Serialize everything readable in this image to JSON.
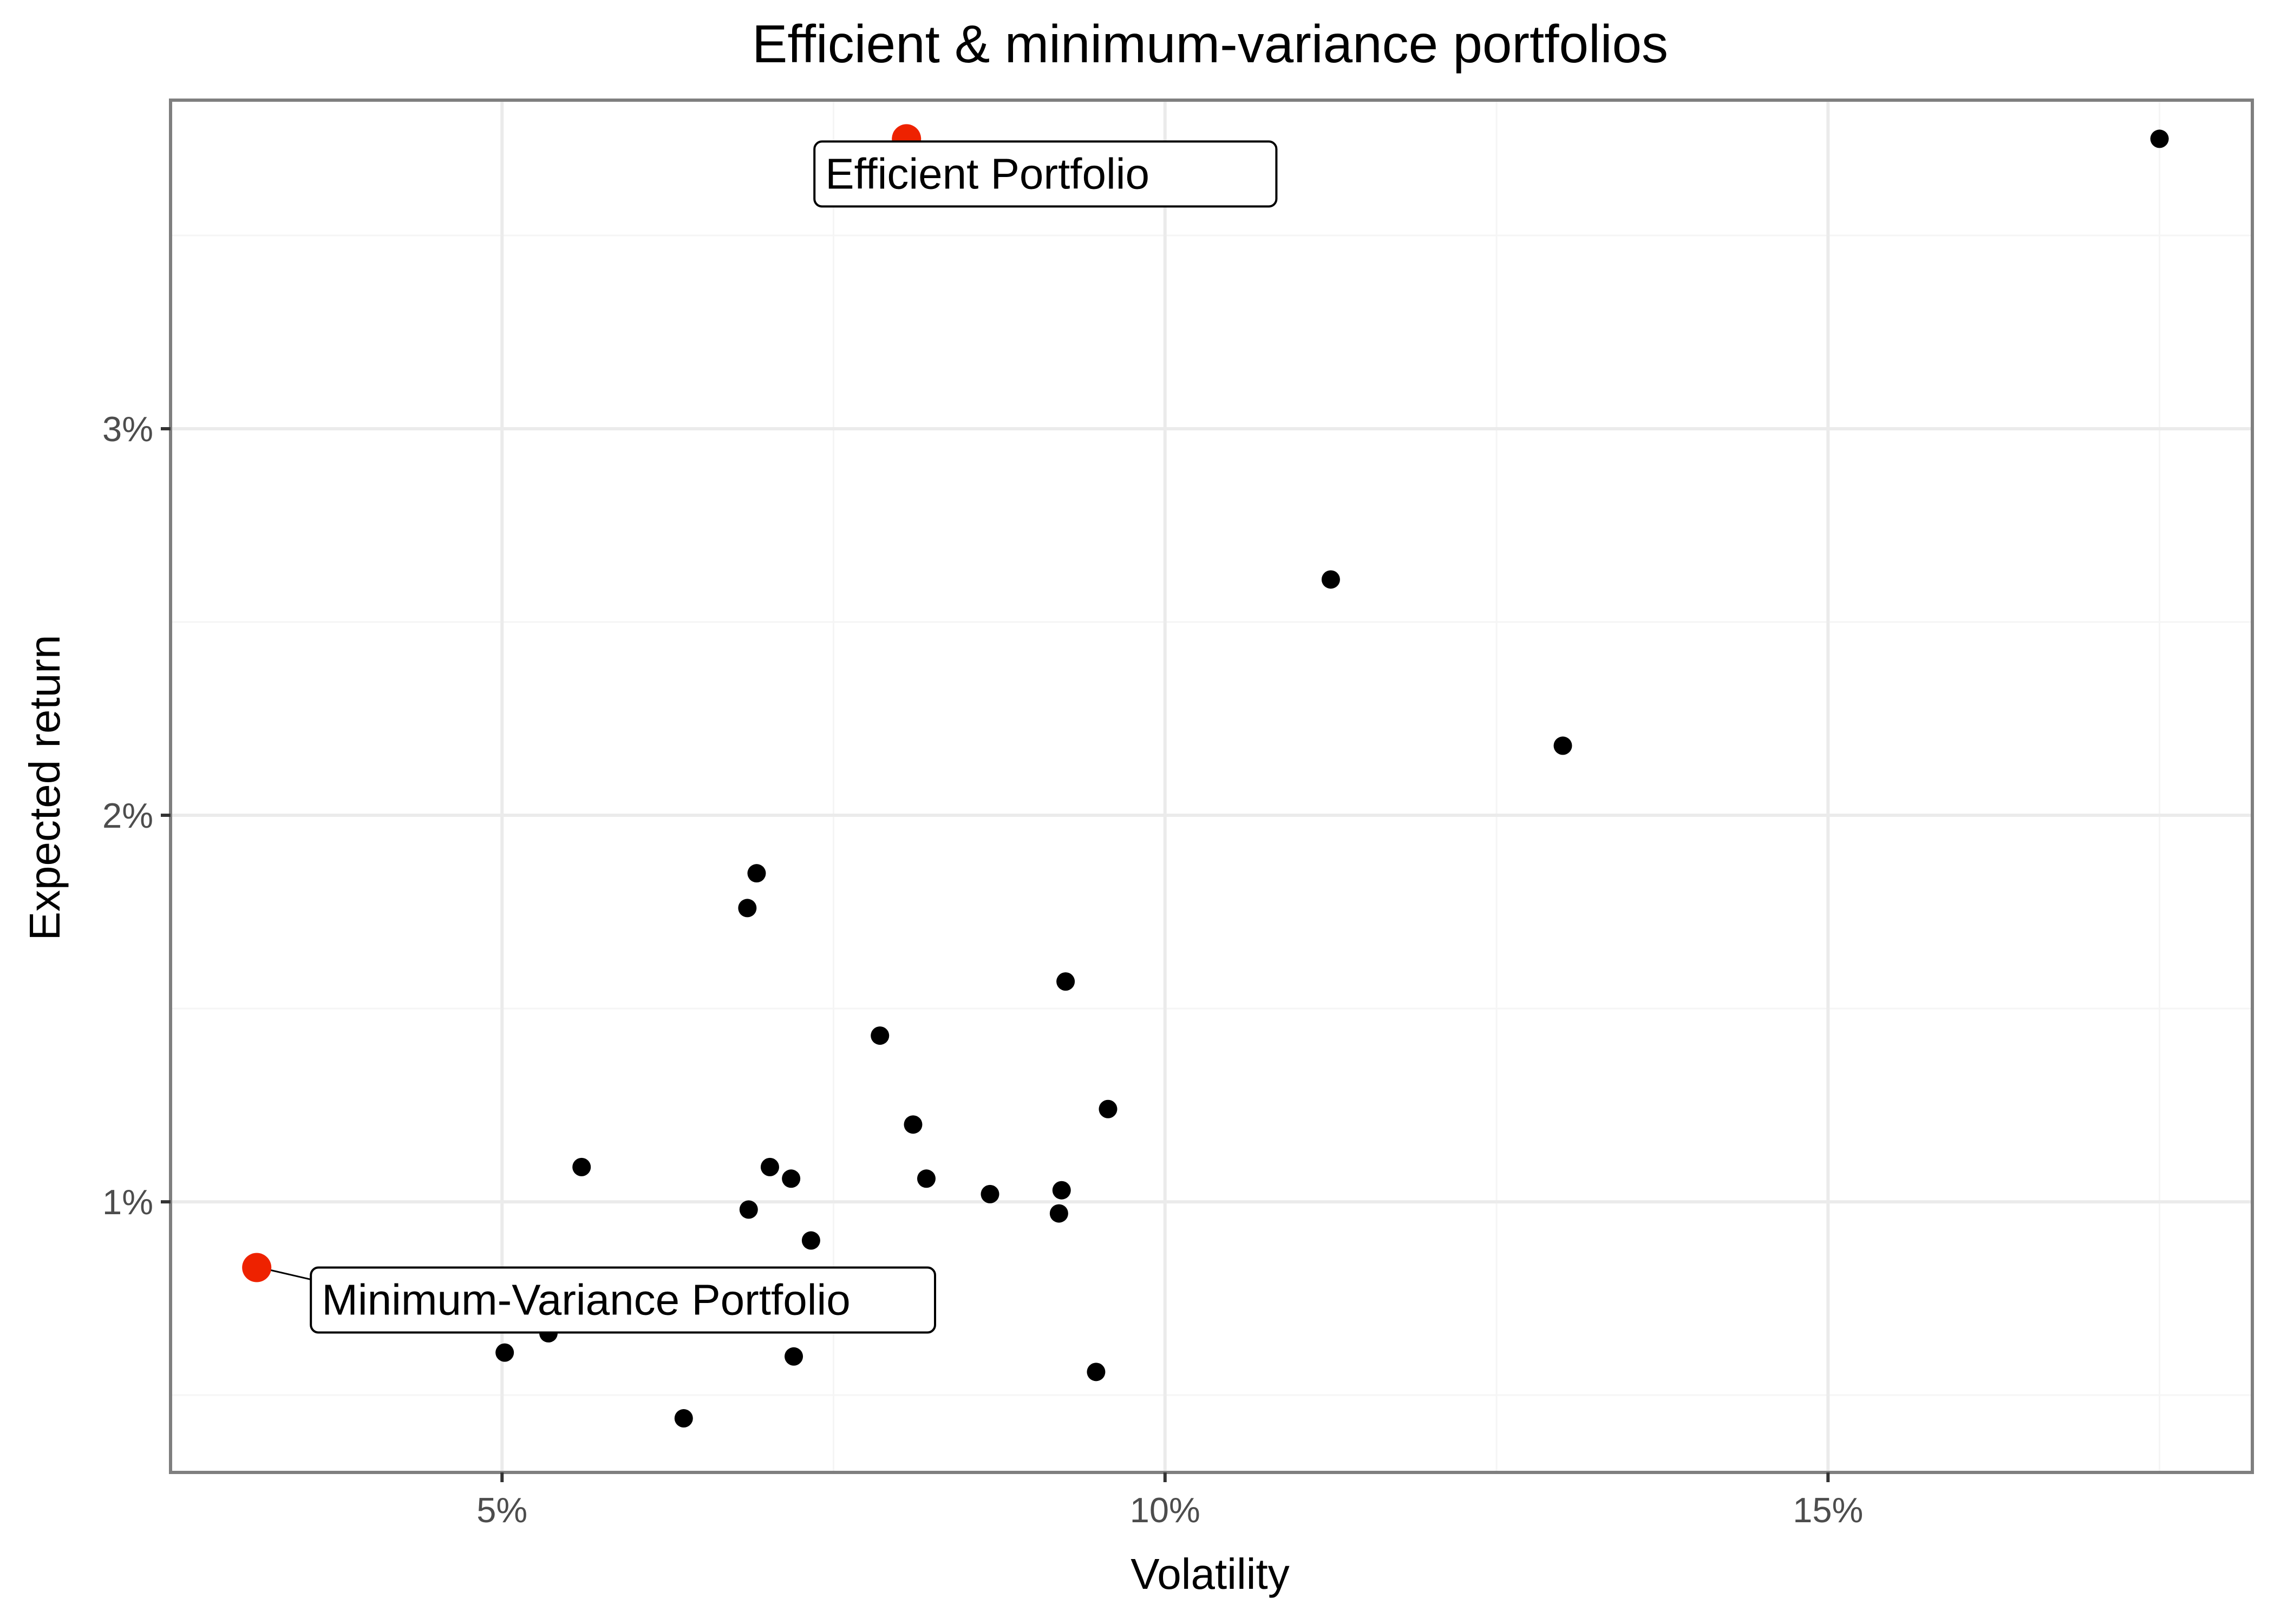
{
  "chart_data": {
    "type": "scatter",
    "title": "Efficient & minimum-variance portfolios",
    "xlabel": "Volatility",
    "ylabel": "Expected return",
    "xlim": [
      2.5,
      18.2
    ],
    "ylim": [
      0.3,
      3.85
    ],
    "x_ticks": [
      {
        "value": 5,
        "label": "5%"
      },
      {
        "value": 10,
        "label": "10%"
      },
      {
        "value": 15,
        "label": "15%"
      }
    ],
    "y_ticks": [
      {
        "value": 1,
        "label": "1%"
      },
      {
        "value": 2,
        "label": "2%"
      },
      {
        "value": 3,
        "label": "3%"
      }
    ],
    "grid": true,
    "legend": "none",
    "colors": {
      "points": "#000000",
      "highlight": "#ee2200",
      "grid_major": "#ebebeb",
      "grid_minor": "#f5f5f5",
      "panel_border": "#7f7f7f",
      "tick_text": "#4d4d4d"
    },
    "points": [
      {
        "x": 17.5,
        "y": 3.75
      },
      {
        "x": 11.25,
        "y": 2.61
      },
      {
        "x": 13.0,
        "y": 2.18
      },
      {
        "x": 6.92,
        "y": 1.85
      },
      {
        "x": 6.85,
        "y": 1.76
      },
      {
        "x": 9.25,
        "y": 1.57
      },
      {
        "x": 7.85,
        "y": 1.43
      },
      {
        "x": 9.57,
        "y": 1.24
      },
      {
        "x": 8.1,
        "y": 1.2
      },
      {
        "x": 5.6,
        "y": 1.09
      },
      {
        "x": 7.02,
        "y": 1.09
      },
      {
        "x": 7.18,
        "y": 1.06
      },
      {
        "x": 8.2,
        "y": 1.06
      },
      {
        "x": 8.68,
        "y": 1.02
      },
      {
        "x": 9.22,
        "y": 1.03
      },
      {
        "x": 6.86,
        "y": 0.98
      },
      {
        "x": 9.2,
        "y": 0.97
      },
      {
        "x": 7.33,
        "y": 0.9
      },
      {
        "x": 5.35,
        "y": 0.66
      },
      {
        "x": 5.02,
        "y": 0.61
      },
      {
        "x": 7.2,
        "y": 0.6
      },
      {
        "x": 9.48,
        "y": 0.56
      },
      {
        "x": 6.37,
        "y": 0.44
      }
    ],
    "highlighted": [
      {
        "name": "Efficient Portfolio",
        "x": 8.05,
        "y": 3.75,
        "label": "Efficient Portfolio"
      },
      {
        "name": "Minimum-Variance Portfolio",
        "x": 3.15,
        "y": 0.83,
        "label": "Minimum-Variance Portfolio"
      }
    ]
  }
}
